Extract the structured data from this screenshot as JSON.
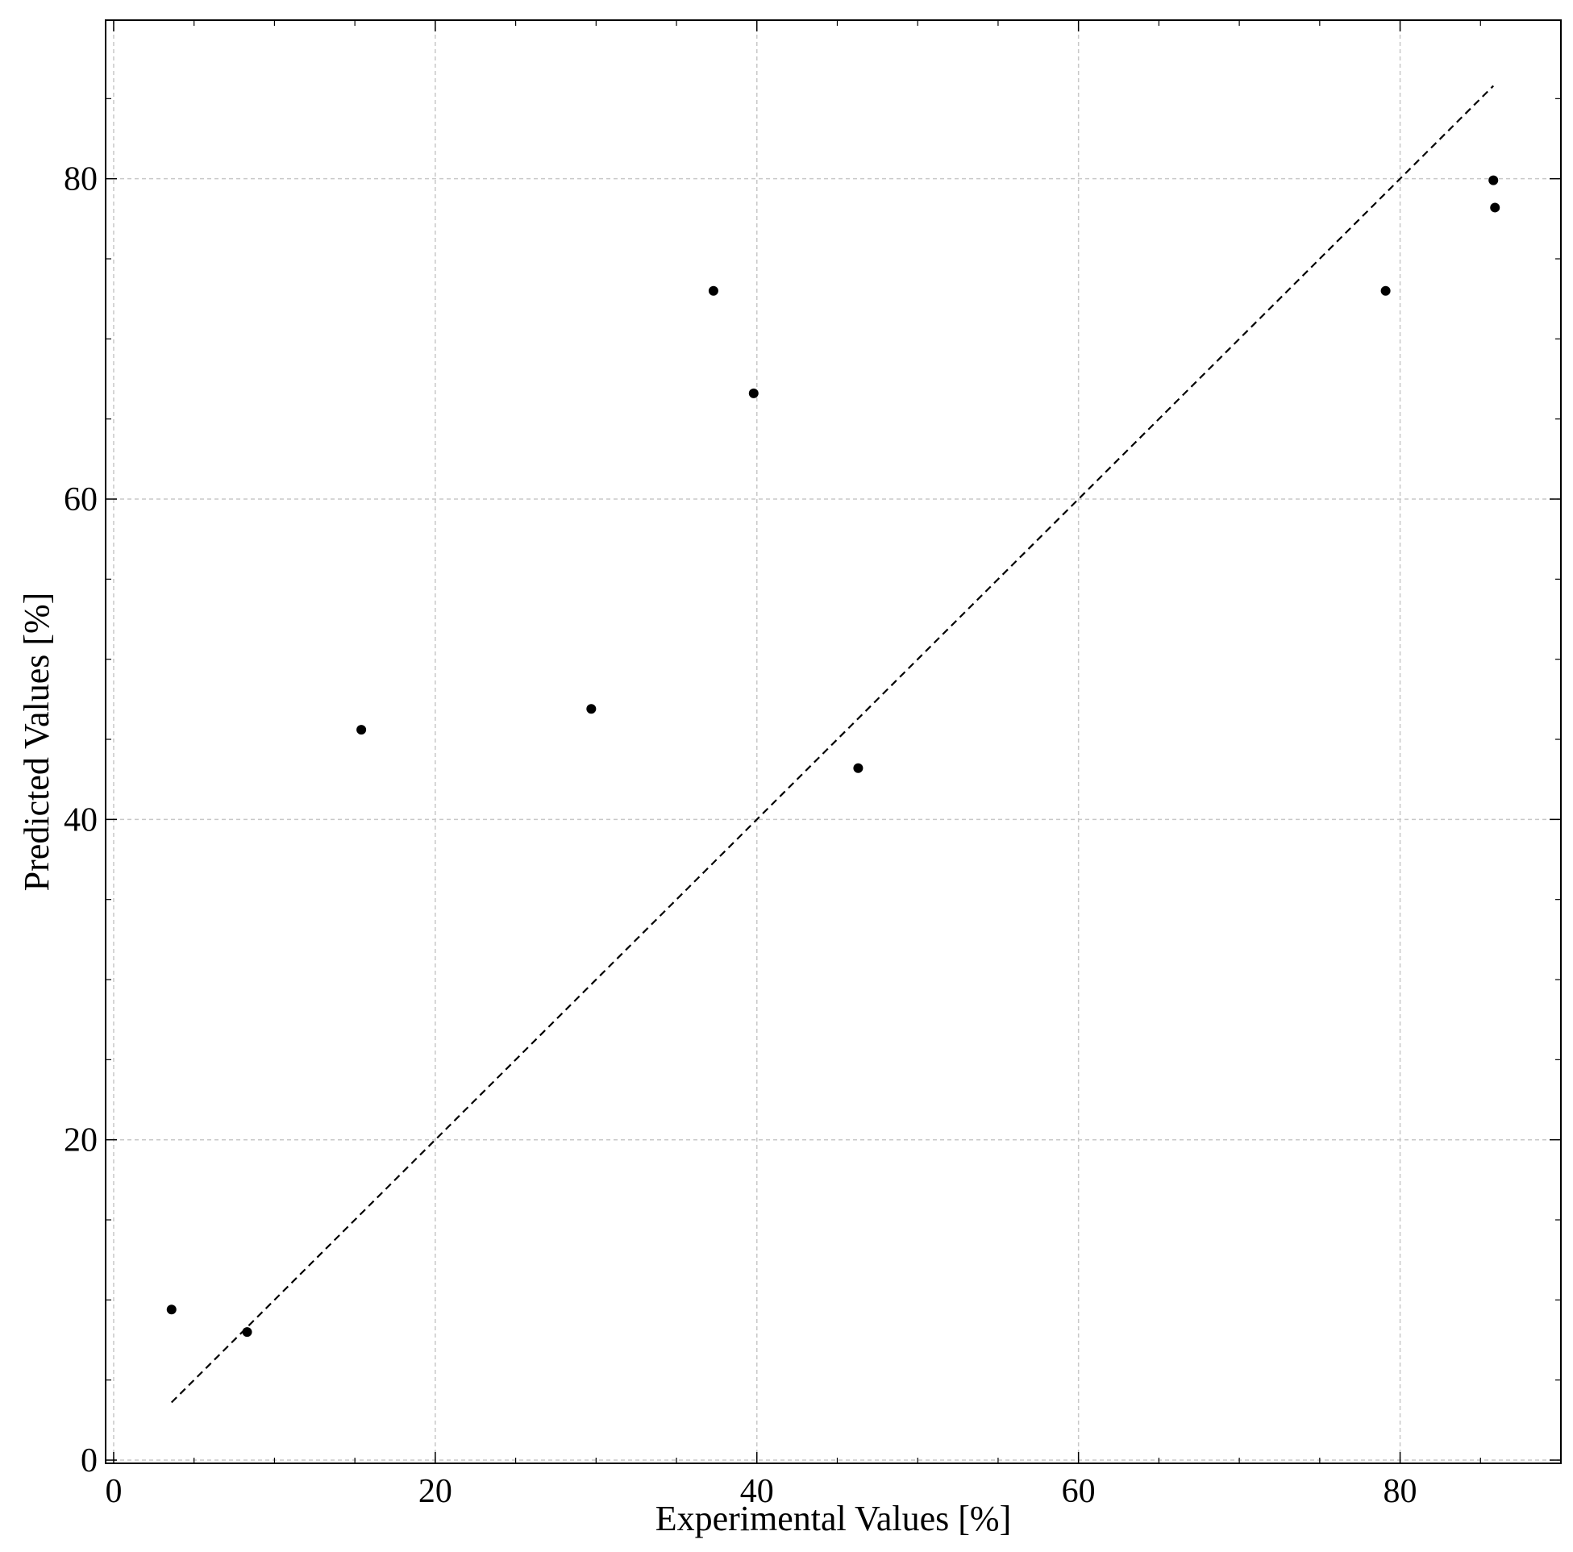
{
  "chart_data": {
    "type": "scatter",
    "title": "",
    "xlabel": "Experimental Values [%]",
    "ylabel": "Predicted Values [%]",
    "xlim": [
      -0.5,
      90.0
    ],
    "ylim": [
      -0.2,
      89.9
    ],
    "xticks": [
      0,
      20,
      40,
      60,
      80
    ],
    "yticks": [
      0,
      20,
      40,
      60,
      80
    ],
    "grid": true,
    "legend": "none",
    "series": [
      {
        "points": [
          {
            "x": 3.6,
            "y": 9.4
          },
          {
            "x": 8.3,
            "y": 8.0
          },
          {
            "x": 15.4,
            "y": 45.6
          },
          {
            "x": 29.7,
            "y": 46.9
          },
          {
            "x": 37.3,
            "y": 73.0
          },
          {
            "x": 39.8,
            "y": 66.6
          },
          {
            "x": 46.3,
            "y": 43.2
          },
          {
            "x": 79.1,
            "y": 73.0
          },
          {
            "x": 85.8,
            "y": 79.9
          },
          {
            "x": 85.9,
            "y": 78.2
          }
        ],
        "color": "#000000"
      }
    ],
    "reference_line": {
      "from": {
        "x": 3.6,
        "y": 3.6
      },
      "to": {
        "x": 85.8,
        "y": 85.8
      },
      "style": "dashed",
      "color": "#000000"
    },
    "colors": {
      "grid": "#c8c8c8",
      "axes": "#000000",
      "points": "#000000"
    }
  }
}
